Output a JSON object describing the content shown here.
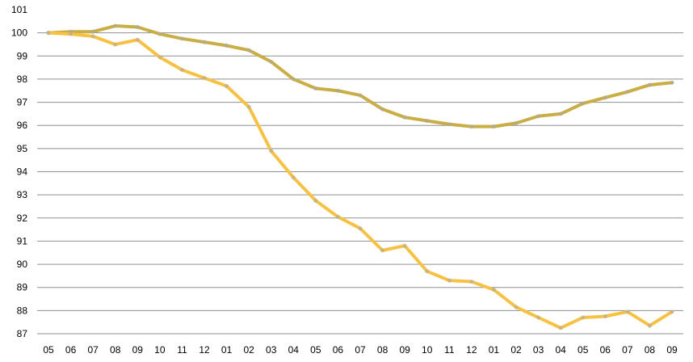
{
  "chart_data": {
    "type": "line",
    "title": "",
    "xlabel": "",
    "ylabel": "",
    "categories": [
      "05",
      "06",
      "07",
      "08",
      "09",
      "10",
      "11",
      "12",
      "01",
      "02",
      "03",
      "04",
      "05",
      "06",
      "07",
      "08",
      "09",
      "10",
      "11",
      "12",
      "01",
      "02",
      "03",
      "04",
      "05",
      "06",
      "07",
      "08",
      "09"
    ],
    "yticks": [
      87,
      88,
      89,
      90,
      91,
      92,
      93,
      94,
      95,
      96,
      97,
      98,
      99,
      100,
      101
    ],
    "ylim": [
      87,
      101
    ],
    "grid": true,
    "legend": "none",
    "series": [
      {
        "color": "#C9AE45",
        "values": [
          100.0,
          100.05,
          100.05,
          100.3,
          100.25,
          99.95,
          99.75,
          99.6,
          99.45,
          99.25,
          98.75,
          98.0,
          97.6,
          97.5,
          97.3,
          96.7,
          96.35,
          96.2,
          96.05,
          95.95,
          95.95,
          96.1,
          96.4,
          96.5,
          96.95,
          97.2,
          97.45,
          97.75,
          97.85
        ]
      },
      {
        "color": "#F7C243",
        "values": [
          100.0,
          99.95,
          99.85,
          99.5,
          99.7,
          98.95,
          98.4,
          98.05,
          97.7,
          96.8,
          94.9,
          93.75,
          92.75,
          92.05,
          91.55,
          90.6,
          90.8,
          89.7,
          89.3,
          89.25,
          88.9,
          88.15,
          87.7,
          87.25,
          87.7,
          87.75,
          87.95,
          87.35,
          87.95
        ]
      }
    ]
  }
}
